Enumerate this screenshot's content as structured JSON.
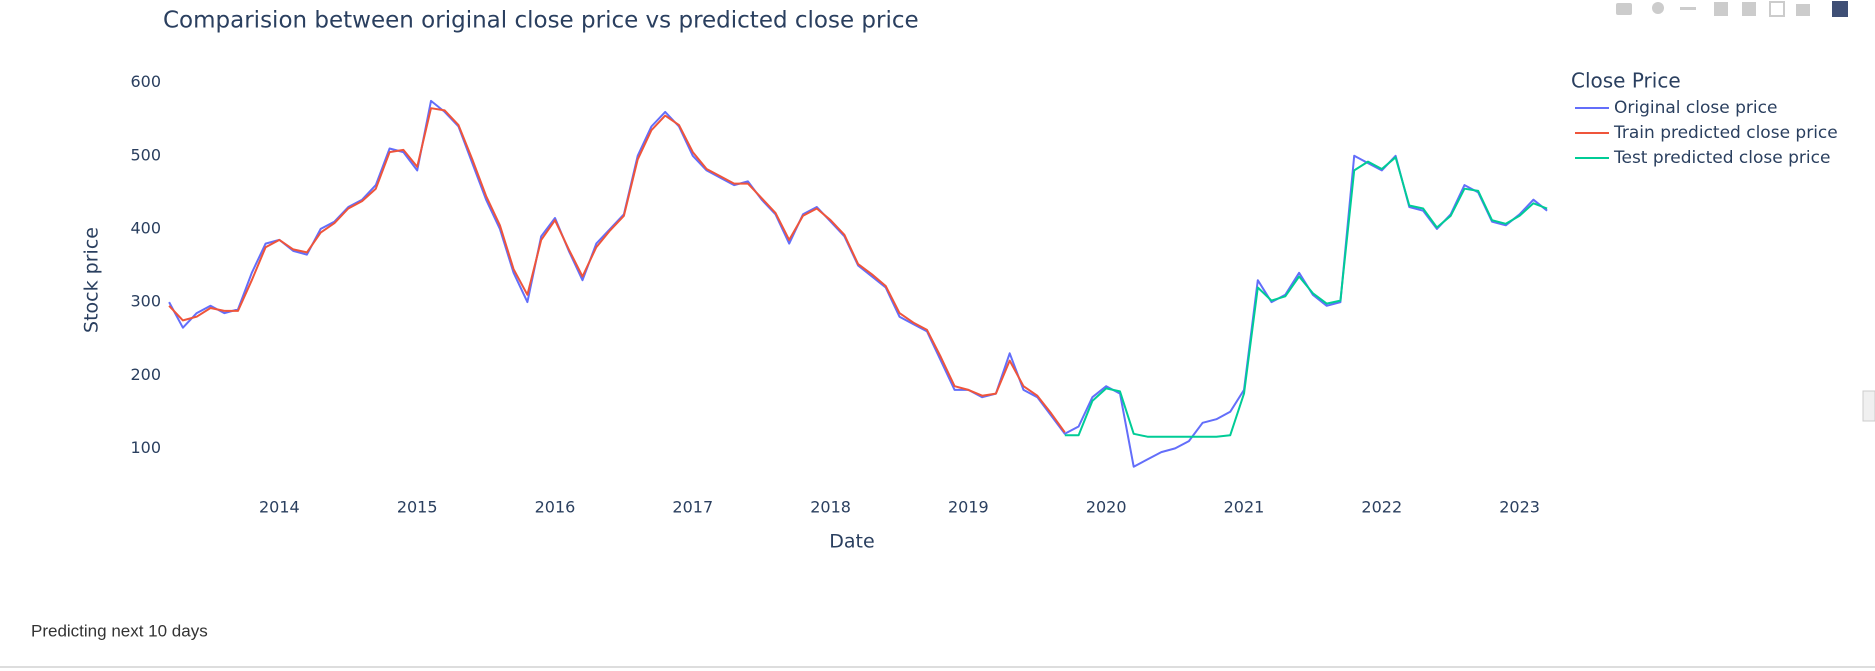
{
  "chart_data": {
    "type": "line",
    "title": "Comparision between original close price vs predicted close price",
    "x_label": "Date",
    "y_label": "Stock price",
    "legend_title": "Close Price",
    "legend_position": "right",
    "x": [
      2013.2,
      2013.3,
      2013.4,
      2013.5,
      2013.6,
      2013.7,
      2013.8,
      2013.9,
      2014.0,
      2014.1,
      2014.2,
      2014.3,
      2014.4,
      2014.5,
      2014.6,
      2014.7,
      2014.8,
      2014.9,
      2015.0,
      2015.1,
      2015.2,
      2015.3,
      2015.4,
      2015.5,
      2015.6,
      2015.7,
      2015.8,
      2015.9,
      2016.0,
      2016.1,
      2016.2,
      2016.3,
      2016.4,
      2016.5,
      2016.6,
      2016.7,
      2016.8,
      2016.9,
      2017.0,
      2017.1,
      2017.2,
      2017.3,
      2017.4,
      2017.5,
      2017.6,
      2017.7,
      2017.8,
      2017.9,
      2018.0,
      2018.1,
      2018.2,
      2018.3,
      2018.4,
      2018.5,
      2018.6,
      2018.7,
      2018.8,
      2018.9,
      2019.0,
      2019.1,
      2019.2,
      2019.3,
      2019.4,
      2019.5,
      2019.6,
      2019.7,
      2019.8,
      2019.9,
      2020.0,
      2020.1,
      2020.2,
      2020.3,
      2020.4,
      2020.5,
      2020.6,
      2020.7,
      2020.8,
      2020.9,
      2021.0,
      2021.1,
      2021.2,
      2021.3,
      2021.4,
      2021.5,
      2021.6,
      2021.7,
      2021.8,
      2021.9,
      2022.0,
      2022.1,
      2022.2,
      2022.3,
      2022.4,
      2022.5,
      2022.6,
      2022.7,
      2022.8,
      2022.9,
      2023.0,
      2023.1,
      2023.2
    ],
    "series": [
      {
        "name": "Original close price",
        "color": "#636efa",
        "values": [
          300,
          265,
          285,
          295,
          285,
          290,
          340,
          380,
          385,
          370,
          365,
          400,
          410,
          430,
          440,
          460,
          510,
          505,
          480,
          575,
          560,
          540,
          490,
          440,
          400,
          340,
          300,
          390,
          415,
          370,
          330,
          380,
          400,
          420,
          500,
          540,
          560,
          540,
          500,
          480,
          470,
          460,
          465,
          440,
          420,
          380,
          420,
          430,
          410,
          390,
          350,
          335,
          320,
          280,
          270,
          260,
          220,
          180,
          180,
          170,
          175,
          230,
          180,
          170,
          145,
          120,
          130,
          170,
          185,
          175,
          75,
          85,
          95,
          100,
          110,
          135,
          140,
          150,
          180,
          330,
          300,
          310,
          340,
          310,
          295,
          300,
          500,
          490,
          480,
          500,
          430,
          425,
          400,
          420,
          460,
          450,
          410,
          405,
          420,
          440,
          425
        ]
      },
      {
        "name": "Train predicted close price",
        "color": "#EF553B",
        "values": [
          295,
          275,
          280,
          292,
          288,
          288,
          330,
          375,
          385,
          372,
          368,
          395,
          408,
          428,
          438,
          455,
          505,
          508,
          485,
          565,
          562,
          542,
          495,
          445,
          405,
          345,
          310,
          385,
          412,
          372,
          335,
          375,
          398,
          418,
          495,
          535,
          555,
          542,
          505,
          482,
          472,
          462,
          462,
          442,
          422,
          385,
          418,
          428,
          412,
          392,
          352,
          338,
          322,
          285,
          272,
          262,
          225,
          185,
          180,
          172,
          175,
          220,
          185,
          172,
          148,
          122,
          null,
          null,
          null,
          null,
          null,
          null,
          null,
          null,
          null,
          null,
          null,
          null,
          null,
          null,
          null,
          null,
          null,
          null,
          null,
          null,
          null,
          null,
          null,
          null,
          null,
          null,
          null,
          null,
          null,
          null,
          null,
          null,
          null,
          null,
          null
        ]
      },
      {
        "name": "Test predicted close price",
        "color": "#00cc96",
        "values": [
          null,
          null,
          null,
          null,
          null,
          null,
          null,
          null,
          null,
          null,
          null,
          null,
          null,
          null,
          null,
          null,
          null,
          null,
          null,
          null,
          null,
          null,
          null,
          null,
          null,
          null,
          null,
          null,
          null,
          null,
          null,
          null,
          null,
          null,
          null,
          null,
          null,
          null,
          null,
          null,
          null,
          null,
          null,
          null,
          null,
          null,
          null,
          null,
          null,
          null,
          null,
          null,
          null,
          null,
          null,
          null,
          null,
          null,
          null,
          null,
          null,
          null,
          null,
          null,
          null,
          118,
          118,
          165,
          182,
          178,
          120,
          116,
          116,
          116,
          116,
          116,
          116,
          118,
          175,
          320,
          302,
          308,
          335,
          312,
          298,
          302,
          480,
          492,
          482,
          498,
          432,
          428,
          402,
          418,
          455,
          452,
          412,
          407,
          418,
          435,
          428
        ]
      }
    ],
    "xlim": [
      2013.17,
      2023.17
    ],
    "xticks": [
      2014,
      2015,
      2016,
      2017,
      2018,
      2019,
      2020,
      2021,
      2022,
      2023
    ],
    "ylim": [
      50,
      620
    ],
    "yticks": [
      100,
      200,
      300,
      400,
      500,
      600
    ],
    "grid": false
  },
  "footer_text": "Predicting next 10 days"
}
